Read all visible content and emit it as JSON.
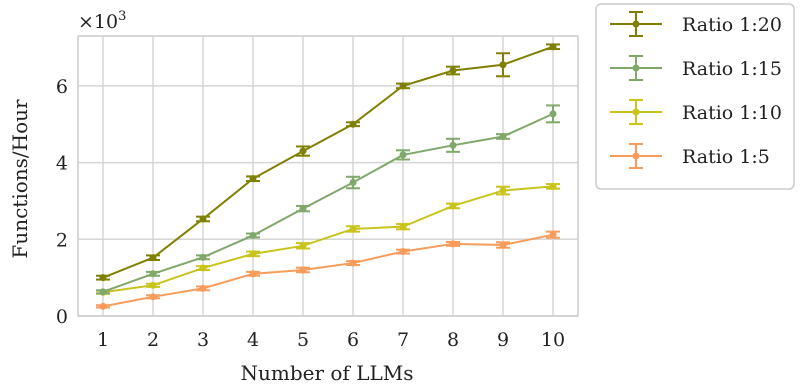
{
  "chart_data": {
    "type": "line",
    "title": "",
    "xlabel": "Number of LLMs",
    "ylabel": "Functions/Hour",
    "y_scale_label": "×10",
    "y_scale_exponent": "3",
    "x": [
      1,
      2,
      3,
      4,
      5,
      6,
      7,
      8,
      9,
      10
    ],
    "xticks": [
      "1",
      "2",
      "3",
      "4",
      "5",
      "6",
      "7",
      "8",
      "9",
      "10"
    ],
    "yticks": [
      "0",
      "2",
      "4",
      "6"
    ],
    "ylim": [
      0,
      7.3
    ],
    "xlim": [
      0.5,
      10.5
    ],
    "grid": true,
    "legend_position": "outside-right-top",
    "series": [
      {
        "name": "Ratio 1:20",
        "color": "#808000",
        "values": [
          1.0,
          1.52,
          2.53,
          3.58,
          4.3,
          5.0,
          6.0,
          6.4,
          6.55,
          7.02
        ],
        "errors": [
          0.05,
          0.06,
          0.06,
          0.06,
          0.12,
          0.05,
          0.06,
          0.1,
          0.3,
          0.06
        ]
      },
      {
        "name": "Ratio 1:15",
        "color": "#7fa86a",
        "values": [
          0.63,
          1.1,
          1.53,
          2.1,
          2.8,
          3.48,
          4.2,
          4.45,
          4.68,
          5.27
        ],
        "errors": [
          0.04,
          0.05,
          0.05,
          0.05,
          0.07,
          0.15,
          0.12,
          0.17,
          0.06,
          0.22
        ]
      },
      {
        "name": "Ratio 1:10",
        "color": "#c8c41c",
        "values": [
          0.62,
          0.8,
          1.25,
          1.62,
          1.83,
          2.27,
          2.33,
          2.87,
          3.27,
          3.38
        ],
        "errors": [
          0.04,
          0.04,
          0.05,
          0.06,
          0.07,
          0.07,
          0.07,
          0.06,
          0.1,
          0.06
        ]
      },
      {
        "name": "Ratio 1:5",
        "color": "#f79c5a",
        "values": [
          0.25,
          0.5,
          0.72,
          1.1,
          1.2,
          1.38,
          1.68,
          1.88,
          1.85,
          2.12
        ],
        "errors": [
          0.03,
          0.04,
          0.05,
          0.05,
          0.06,
          0.05,
          0.05,
          0.05,
          0.07,
          0.08
        ]
      }
    ]
  }
}
